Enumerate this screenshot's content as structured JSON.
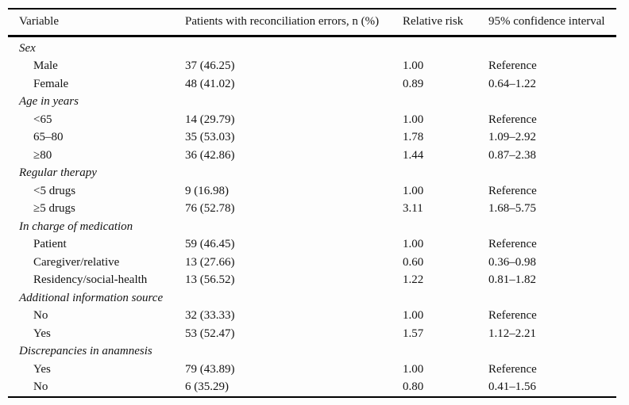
{
  "table": {
    "columns": [
      "Variable",
      "Patients with reconciliation errors, n (%)",
      "Relative risk",
      "95% confidence interval"
    ],
    "rows": [
      {
        "type": "group",
        "label": "Sex"
      },
      {
        "type": "data",
        "label": "Male",
        "patients": "37 (46.25)",
        "rr": "1.00",
        "ci": "Reference"
      },
      {
        "type": "data",
        "label": "Female",
        "patients": "48 (41.02)",
        "rr": "0.89",
        "ci": "0.64–1.22"
      },
      {
        "type": "group",
        "label": "Age in years"
      },
      {
        "type": "data",
        "label": "<65",
        "patients": "14 (29.79)",
        "rr": "1.00",
        "ci": "Reference"
      },
      {
        "type": "data",
        "label": "65–80",
        "patients": "35 (53.03)",
        "rr": "1.78",
        "ci": "1.09–2.92"
      },
      {
        "type": "data",
        "label": "≥80",
        "patients": "36 (42.86)",
        "rr": "1.44",
        "ci": "0.87–2.38"
      },
      {
        "type": "group",
        "label": "Regular therapy"
      },
      {
        "type": "data",
        "label": "<5 drugs",
        "patients": "9 (16.98)",
        "rr": "1.00",
        "ci": "Reference"
      },
      {
        "type": "data",
        "label": "≥5 drugs",
        "patients": "76 (52.78)",
        "rr": "3.11",
        "ci": "1.68–5.75"
      },
      {
        "type": "group",
        "label": "In charge of medication"
      },
      {
        "type": "data",
        "label": "Patient",
        "patients": "59 (46.45)",
        "rr": "1.00",
        "ci": "Reference"
      },
      {
        "type": "data",
        "label": "Caregiver/relative",
        "patients": "13 (27.66)",
        "rr": "0.60",
        "ci": "0.36–0.98"
      },
      {
        "type": "data",
        "label": "Residency/social-health",
        "patients": "13 (56.52)",
        "rr": "1.22",
        "ci": "0.81–1.82"
      },
      {
        "type": "group",
        "label": "Additional information source"
      },
      {
        "type": "data",
        "label": "No",
        "patients": "32 (33.33)",
        "rr": "1.00",
        "ci": "Reference"
      },
      {
        "type": "data",
        "label": "Yes",
        "patients": "53 (52.47)",
        "rr": "1.57",
        "ci": "1.12–2.21"
      },
      {
        "type": "group",
        "label": "Discrepancies in anamnesis"
      },
      {
        "type": "data",
        "label": "Yes",
        "patients": "79 (43.89)",
        "rr": "1.00",
        "ci": "Reference"
      },
      {
        "type": "data",
        "label": "No",
        "patients": "6 (35.29)",
        "rr": "0.80",
        "ci": "0.41–1.56"
      }
    ]
  },
  "colors": {
    "text": "#141414",
    "rule": "#000000",
    "background": "#fdfdfd"
  }
}
